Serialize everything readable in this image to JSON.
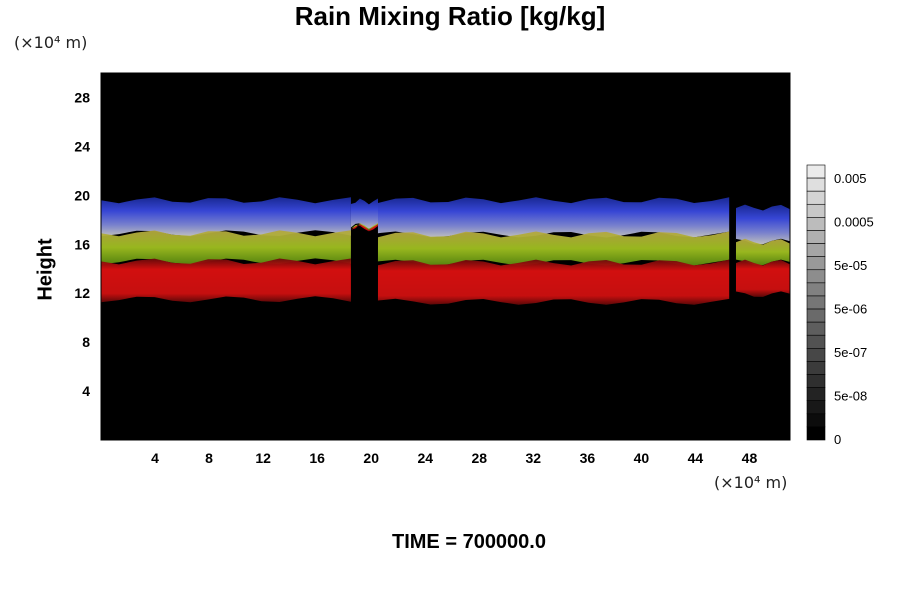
{
  "chart_data": {
    "type": "heatmap",
    "title": "Rain Mixing Ratio [kg/kg]",
    "ylabel": "Height",
    "x_unit": "(×10⁴ m)",
    "y_unit": "(×10⁴ m)",
    "footer": "TIME = 700000.0",
    "xlim": [
      0,
      51
    ],
    "ylim": [
      0,
      30
    ],
    "x_ticks": [
      4,
      8,
      12,
      16,
      20,
      24,
      28,
      32,
      36,
      40,
      44,
      48
    ],
    "y_ticks": [
      4,
      8,
      12,
      16,
      20,
      24,
      28
    ],
    "colorbar": {
      "labels": [
        "0.005",
        "0.0005",
        "5e-05",
        "5e-06",
        "5e-07",
        "5e-08",
        "0"
      ],
      "levels": 21
    },
    "background_color": "#000000",
    "layer_colors": {
      "top": "#2a38d0",
      "middle": "#a8c020",
      "bottom": "#dd1010"
    },
    "cloud_segments": [
      {
        "x_start": 0,
        "x_end": 18.5,
        "top": 19.6,
        "blue_green": 16.9,
        "green_red": 14.6,
        "bottom": 11.5
      },
      {
        "x_start": 18.5,
        "x_end": 20.5,
        "top": 19.5,
        "blue_green": 17.5,
        "green_red": 17.4,
        "bottom": 17.3
      },
      {
        "x_start": 20.5,
        "x_end": 46.5,
        "top": 19.6,
        "blue_green": 16.8,
        "green_red": 14.5,
        "bottom": 11.3
      },
      {
        "x_start": 47,
        "x_end": 51,
        "top": 19.0,
        "blue_green": 16.2,
        "green_red": 14.5,
        "bottom": 11.9
      }
    ]
  }
}
